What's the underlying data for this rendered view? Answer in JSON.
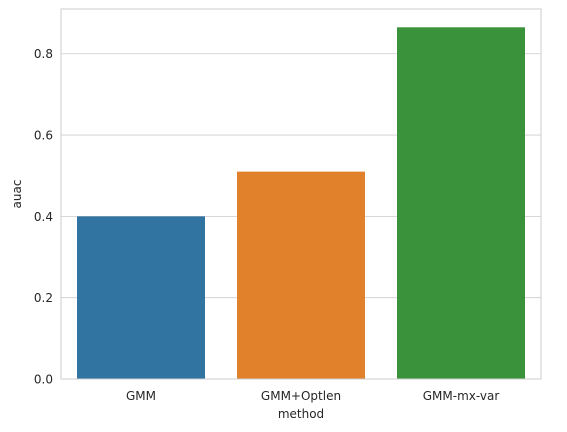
{
  "chart_data": {
    "type": "bar",
    "title": "",
    "xlabel": "method",
    "ylabel": "auac",
    "categories": [
      "GMM",
      "GMM+Optlen",
      "GMM-mx-var"
    ],
    "values": [
      0.4,
      0.51,
      0.865
    ],
    "colors": [
      "#3274a1",
      "#e1812c",
      "#3a923a"
    ],
    "ylim": [
      0,
      0.91
    ],
    "yticks": [
      0.0,
      0.2,
      0.4,
      0.6,
      0.8
    ],
    "ytick_labels": [
      "0.0",
      "0.2",
      "0.4",
      "0.6",
      "0.8"
    ],
    "grid": "horizontal",
    "legend": "none"
  }
}
